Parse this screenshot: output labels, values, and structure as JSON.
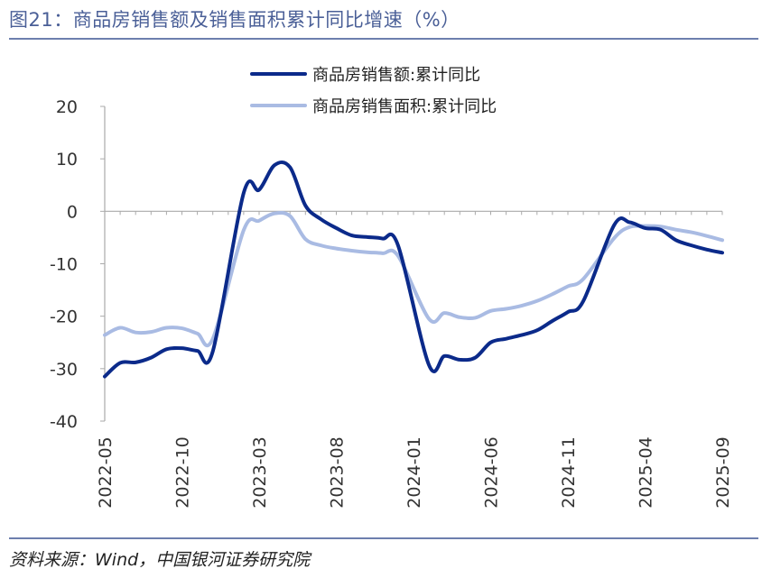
{
  "figure": {
    "title": "图21：商品房销售额及销售面积累计同比增速（%）",
    "source": "资料来源：Wind，中国银河证券研究院"
  },
  "colors": {
    "title": "#4a5f97",
    "rule": "#6d7fae",
    "series_dark": "#0b2a8a",
    "series_light": "#a9bbe3",
    "axis": "#aaaaaa"
  },
  "chart_data": {
    "type": "line",
    "x": [
      "2022-05",
      "2022-06",
      "2022-07",
      "2022-08",
      "2022-09",
      "2022-10",
      "2022-11",
      "2022-12",
      "2023-01",
      "2023-02",
      "2023-03",
      "2023-04",
      "2023-05",
      "2023-06",
      "2023-07",
      "2023-08",
      "2023-09",
      "2023-10",
      "2023-11",
      "2023-12",
      "2024-01",
      "2024-02",
      "2024-03",
      "2024-04",
      "2024-05",
      "2024-06",
      "2024-07",
      "2024-08",
      "2024-09",
      "2024-10",
      "2024-11",
      "2024-12",
      "2025-01",
      "2025-02",
      "2025-03",
      "2025-04",
      "2025-05",
      "2025-06",
      "2025-07",
      "2025-08",
      "2025-09"
    ],
    "xticks": [
      "2022-05",
      "2022-10",
      "2023-03",
      "2023-08",
      "2024-01",
      "2024-06",
      "2024-11",
      "2025-04",
      "2025-09"
    ],
    "ylim": [
      -40,
      20
    ],
    "yticks": [
      20,
      10,
      0,
      -10,
      -20,
      -30,
      -40
    ],
    "grid": false,
    "legend_position": "top-center",
    "series": [
      {
        "name": "商品房销售额:累计同比",
        "color": "#0b2a8a",
        "values": [
          -31.5,
          -28.9,
          -28.8,
          -27.9,
          -26.3,
          -26.1,
          -26.6,
          -26.7,
          null,
          3.5,
          4.1,
          8.8,
          8.4,
          1.1,
          -1.5,
          -3.2,
          -4.6,
          -4.9,
          -5.2,
          -6.5,
          null,
          -29.3,
          -27.6,
          -28.3,
          -27.9,
          -25.0,
          -24.3,
          -23.6,
          -22.7,
          -20.9,
          -19.2,
          -17.1,
          null,
          -2.6,
          -2.1,
          -3.2,
          -3.5,
          -5.5,
          -6.5,
          -7.3,
          -7.9
        ]
      },
      {
        "name": "商品房销售面积:累计同比",
        "color": "#a9bbe3",
        "values": [
          -23.6,
          -22.2,
          -23.1,
          -23.0,
          -22.2,
          -22.3,
          -23.3,
          -24.3,
          null,
          -3.6,
          -1.8,
          -0.4,
          -0.9,
          -5.3,
          -6.5,
          -7.1,
          -7.5,
          -7.8,
          -8.0,
          -8.5,
          null,
          -20.5,
          -19.4,
          -20.2,
          -20.3,
          -19.0,
          -18.6,
          -18.0,
          -17.1,
          -15.8,
          -14.3,
          -12.9,
          null,
          -5.1,
          -3.0,
          -2.8,
          -2.9,
          -3.5,
          -4.0,
          -4.7,
          -5.5
        ]
      }
    ]
  }
}
